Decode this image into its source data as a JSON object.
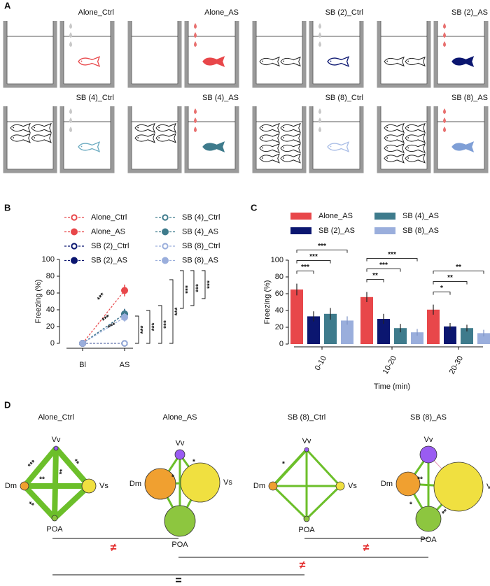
{
  "panel_labels": [
    "A",
    "B",
    "C",
    "D"
  ],
  "panel_a": {
    "groups": [
      {
        "label": "Alone_Ctrl",
        "fish_color": "#e8474a",
        "fish_filled": false,
        "cue_color": "#c8c8c8"
      },
      {
        "label": "Alone_AS",
        "fish_color": "#e8474a",
        "fish_filled": true,
        "cue_color": "#e8706f"
      },
      {
        "label": "SB (2)_Ctrl",
        "fish_color": "#0b1670",
        "fish_filled": false,
        "cue_color": "#c8c8c8"
      },
      {
        "label": "SB (2)_AS",
        "fish_color": "#0b1670",
        "fish_filled": true,
        "cue_color": "#e8706f"
      },
      {
        "label": "SB (4)_Ctrl",
        "fish_color": "#6aaac0",
        "fish_filled": false,
        "cue_color": "#c8c8c8"
      },
      {
        "label": "SB (4)_AS",
        "fish_color": "#3e7b8c",
        "fish_filled": true,
        "cue_color": "#e8706f"
      },
      {
        "label": "SB (8)_Ctrl",
        "fish_color": "#a9bde6",
        "fish_filled": false,
        "cue_color": "#c8c8c8"
      },
      {
        "label": "SB (8)_AS",
        "fish_color": "#7f9fd6",
        "fish_filled": true,
        "cue_color": "#e8706f"
      }
    ]
  },
  "chart_data": [
    {
      "type": "line",
      "ylabel": "Freezing (%)",
      "categories": [
        "Bl",
        "AS"
      ],
      "ylim": [
        0,
        100
      ],
      "yticks": [
        0,
        20,
        40,
        60,
        80,
        100
      ],
      "series": [
        {
          "name": "Alone_Ctrl",
          "color": "#e8474a",
          "marker": "open",
          "values": [
            0,
            0
          ],
          "errors": [
            0,
            1
          ]
        },
        {
          "name": "Alone_AS",
          "color": "#e8474a",
          "marker": "filled",
          "values": [
            0,
            63
          ],
          "errors": [
            0,
            7
          ]
        },
        {
          "name": "SB (2)_Ctrl",
          "color": "#0b1670",
          "marker": "open",
          "values": [
            0,
            0
          ],
          "errors": [
            0,
            1
          ]
        },
        {
          "name": "SB (2)_AS",
          "color": "#0b1670",
          "marker": "filled",
          "values": [
            0,
            35
          ],
          "errors": [
            0,
            6
          ]
        },
        {
          "name": "SB (4)_Ctrl",
          "color": "#3e7b8c",
          "marker": "open",
          "values": [
            0,
            0
          ],
          "errors": [
            0,
            1
          ]
        },
        {
          "name": "SB (4)_AS",
          "color": "#3e7b8c",
          "marker": "filled",
          "values": [
            0,
            35
          ],
          "errors": [
            0,
            6
          ]
        },
        {
          "name": "SB (8)_Ctrl",
          "color": "#9aaedc",
          "marker": "open",
          "values": [
            0,
            0
          ],
          "errors": [
            0,
            1
          ]
        },
        {
          "name": "SB (8)_AS",
          "color": "#9aaedc",
          "marker": "filled",
          "values": [
            0,
            31
          ],
          "errors": [
            0,
            5
          ]
        }
      ],
      "annotations": [
        "***",
        "***",
        "***",
        "***",
        "***",
        "***",
        "***",
        "***",
        "***",
        "***"
      ]
    },
    {
      "type": "bar",
      "ylabel": "Freezing (%)",
      "xlabel": "Time (min)",
      "categories": [
        "0-10",
        "10-20",
        "20-30"
      ],
      "ylim": [
        0,
        100
      ],
      "yticks": [
        0,
        20,
        40,
        60,
        80,
        100
      ],
      "series": [
        {
          "name": "Alone_AS",
          "color": "#e8474a",
          "values": [
            65,
            56,
            41
          ],
          "errors": [
            7,
            6,
            6
          ]
        },
        {
          "name": "SB (2)_AS",
          "color": "#0b1670",
          "values": [
            33,
            30,
            21
          ],
          "errors": [
            6,
            6,
            4
          ]
        },
        {
          "name": "SB (4)_AS",
          "color": "#3e7b8c",
          "values": [
            36,
            19,
            19
          ],
          "errors": [
            7,
            5,
            4
          ]
        },
        {
          "name": "SB (8)_AS",
          "color": "#9aaedc",
          "values": [
            28,
            14,
            13
          ],
          "errors": [
            5,
            4,
            4
          ]
        }
      ],
      "annotations": [
        "***",
        "***",
        "***",
        "**",
        "***",
        "***",
        "*",
        "**",
        "**"
      ]
    }
  ],
  "panel_d": {
    "networks": [
      {
        "title": "Alone_Ctrl",
        "nodes": [
          "Vv",
          "Dm",
          "Vs",
          "POA"
        ],
        "edge_labels": [
          "***",
          "**",
          "**",
          "**",
          "**"
        ]
      },
      {
        "title": "Alone_AS",
        "nodes": [
          "Vv",
          "Dm",
          "Vs",
          "POA"
        ],
        "edge_labels": [
          "*",
          "*"
        ]
      },
      {
        "title": "SB (8)_Ctrl",
        "nodes": [
          "Vv",
          "Dm",
          "Vs",
          "POA"
        ],
        "edge_labels": [
          "*"
        ]
      },
      {
        "title": "SB (8)_AS",
        "nodes": [
          "Vv",
          "Dm",
          "Vs",
          "POA"
        ],
        "edge_labels": [
          "**",
          "*",
          "**"
        ]
      }
    ],
    "comparisons": [
      {
        "label": "≠",
        "color": "#e32b2b"
      },
      {
        "label": "≠",
        "color": "#e32b2b"
      },
      {
        "label": "≠",
        "color": "#e32b2b"
      },
      {
        "label": "=",
        "color": "#111111"
      }
    ]
  }
}
